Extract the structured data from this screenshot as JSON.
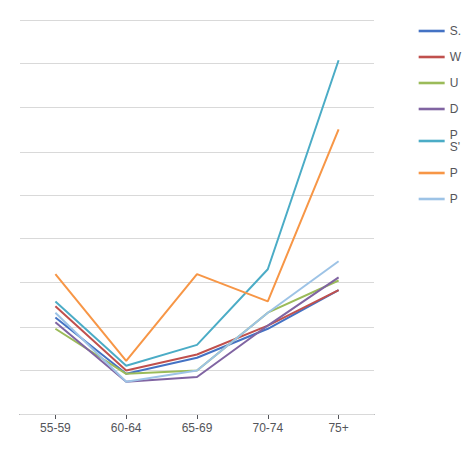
{
  "chart_data": {
    "type": "line",
    "categories": [
      "55-59",
      "60-64",
      "65-69",
      "70-74",
      "75+"
    ],
    "series": [
      {
        "name": "S.",
        "color": "#4472C4",
        "values": [
          1.45,
          1.1,
          1.2,
          1.38,
          1.62
        ]
      },
      {
        "name": "W",
        "color": "#C0504D",
        "values": [
          1.52,
          1.12,
          1.22,
          1.4,
          1.62
        ]
      },
      {
        "name": "U",
        "color": "#9BBB59",
        "values": [
          1.38,
          1.1,
          1.12,
          1.48,
          1.68
        ]
      },
      {
        "name": "D",
        "color": "#8064A2",
        "values": [
          1.42,
          1.05,
          1.08,
          1.4,
          1.7
        ]
      },
      {
        "name": "P\nS'",
        "color": "#4BACC6",
        "values": [
          1.55,
          1.15,
          1.28,
          1.75,
          3.05
        ]
      },
      {
        "name": "P",
        "color": "#F79646",
        "values": [
          1.72,
          1.18,
          1.72,
          1.55,
          2.62
        ]
      },
      {
        "name": "P",
        "color": "#9DC3E6",
        "values": [
          1.48,
          1.05,
          1.12,
          1.48,
          1.8
        ]
      }
    ],
    "ylim": [
      0.85,
      3.3
    ],
    "yticks": [
      0.85,
      1.1222222222222222,
      1.3944444444444444,
      1.6666666666666667,
      1.9388888888888889,
      2.211111111111111,
      2.4833333333333334,
      2.7555555555555555,
      3.0277777777777777,
      3.3
    ],
    "grid": true,
    "legend": "upper right",
    "tick_labels": "x"
  }
}
